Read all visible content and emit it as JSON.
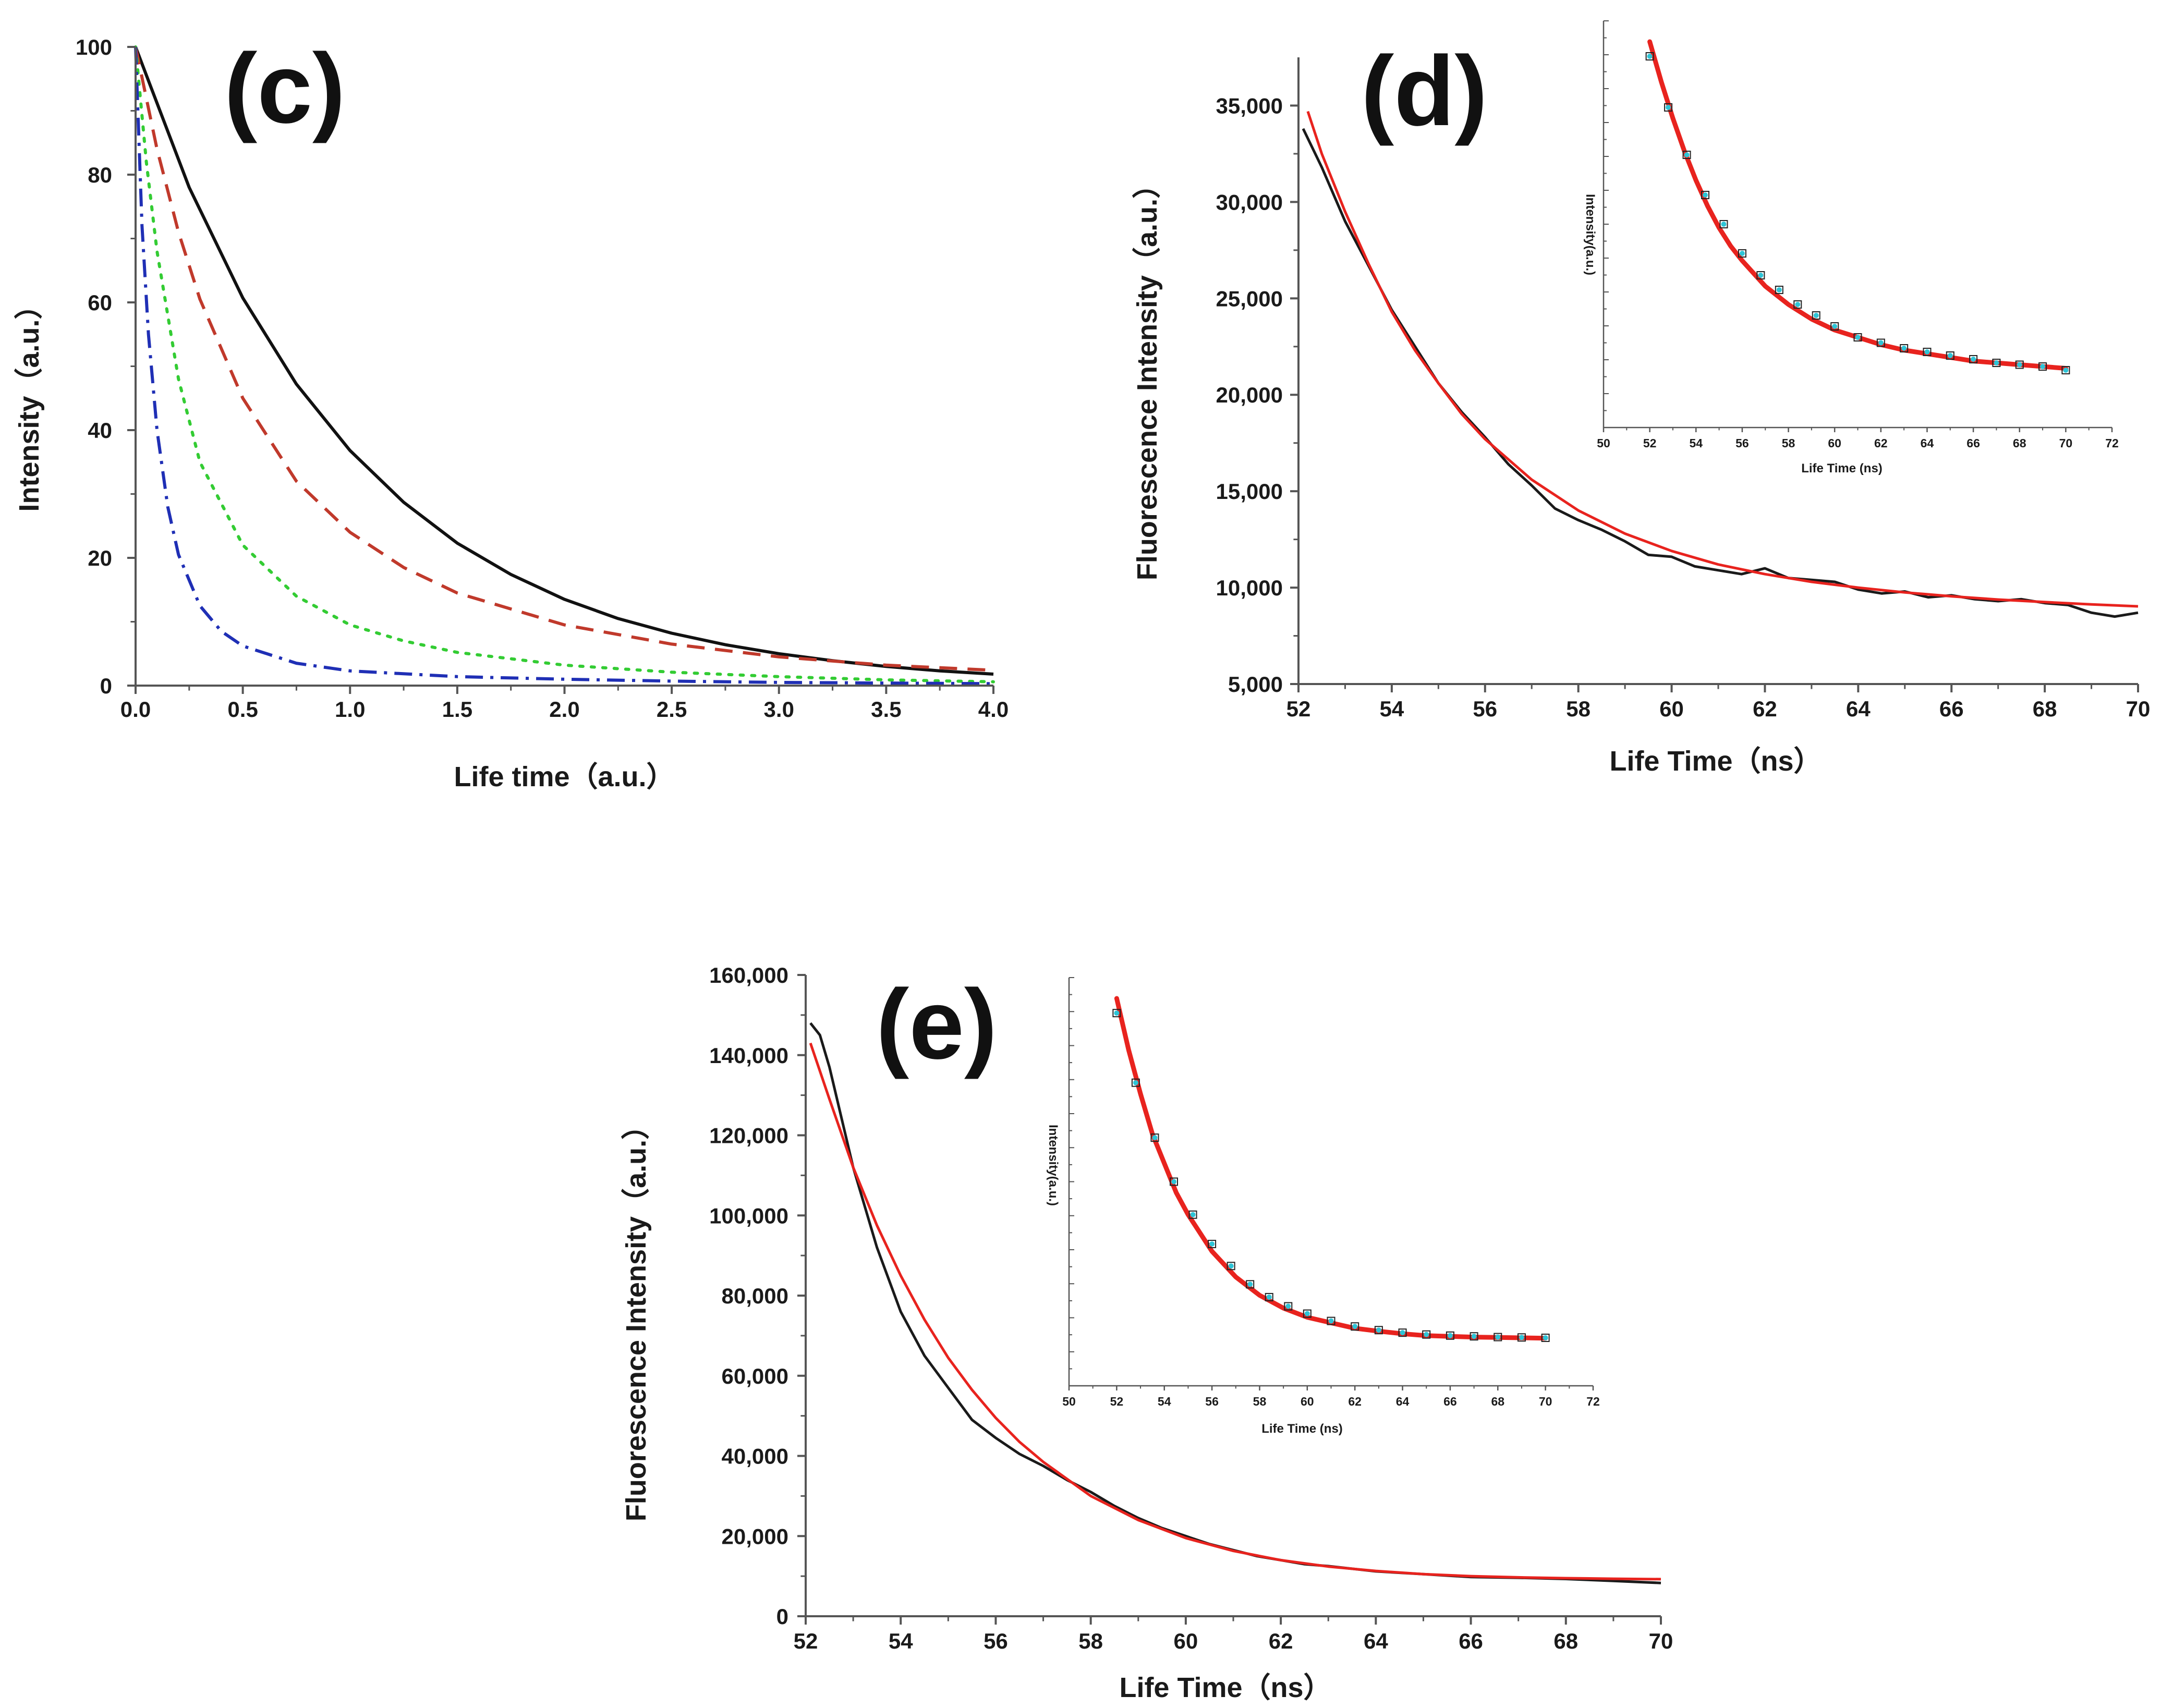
{
  "figure": {
    "panels": [
      {
        "id": "c",
        "label": "(c)",
        "xlabel": "Life time（a.u.）",
        "ylabel": "Intensity（a.u.）",
        "xticks": [
          "0.0",
          "0.5",
          "1.0",
          "1.5",
          "2.0",
          "2.5",
          "3.0",
          "3.5",
          "4.0"
        ],
        "yticks": [
          "0",
          "20",
          "40",
          "60",
          "80",
          "100"
        ]
      },
      {
        "id": "d",
        "label": "(d)",
        "xlabel": "Life Time（ns）",
        "ylabel": "Fluorescence Intensity（a.u.）",
        "xticks": [
          "52",
          "54",
          "56",
          "58",
          "60",
          "62",
          "64",
          "66",
          "68",
          "70"
        ],
        "yticks": [
          "5,000",
          "10,000",
          "15,000",
          "20,000",
          "25,000",
          "30,000",
          "35,000"
        ],
        "inset": {
          "xlabel": "Life Time (ns)",
          "ylabel": "Intensity(a.u.)",
          "xticks": [
            "50",
            "52",
            "54",
            "56",
            "58",
            "60",
            "62",
            "64",
            "66",
            "68",
            "70",
            "72"
          ]
        }
      },
      {
        "id": "e",
        "label": "(e)",
        "xlabel": "Life Time（ns）",
        "ylabel": "Fluorescence Intensity（a.u.）",
        "xticks": [
          "52",
          "54",
          "56",
          "58",
          "60",
          "62",
          "64",
          "66",
          "68",
          "70"
        ],
        "yticks": [
          "0",
          "20,000",
          "40,000",
          "60,000",
          "80,000",
          "100,000",
          "120,000",
          "140,000",
          "160,000"
        ],
        "inset": {
          "xlabel": "Life Time (ns)",
          "ylabel": "Intensity(a.u.)",
          "xticks": [
            "50",
            "52",
            "54",
            "56",
            "58",
            "60",
            "62",
            "64",
            "66",
            "68",
            "70",
            "72"
          ]
        }
      }
    ]
  },
  "chart_data": [
    {
      "panel": "c",
      "type": "line",
      "title": "(c)",
      "xlabel": "Life time（a.u.）",
      "ylabel": "Intensity（a.u.）",
      "xlim": [
        0,
        4
      ],
      "ylim": [
        0,
        100
      ],
      "series": [
        {
          "name": "solid black",
          "color": "#111111",
          "style": "solid",
          "x": [
            0,
            0.25,
            0.5,
            0.75,
            1.0,
            1.25,
            1.5,
            1.75,
            2.0,
            2.25,
            2.5,
            2.75,
            3.0,
            3.25,
            3.5,
            3.75,
            4.0
          ],
          "y": [
            100,
            78,
            60.7,
            47.2,
            36.8,
            28.7,
            22.3,
            17.4,
            13.5,
            10.5,
            8.2,
            6.4,
            5.0,
            3.9,
            3.0,
            2.3,
            1.8
          ]
        },
        {
          "name": "dashed red",
          "color": "#c0392b",
          "style": "dashed",
          "x": [
            0,
            0.1,
            0.2,
            0.3,
            0.5,
            0.75,
            1.0,
            1.25,
            1.5,
            2.0,
            2.5,
            3.0,
            3.5,
            4.0
          ],
          "y": [
            100,
            84,
            71,
            60.5,
            45,
            32,
            24,
            18.5,
            14.5,
            9.5,
            6.5,
            4.5,
            3.2,
            2.4
          ]
        },
        {
          "name": "dotted green",
          "color": "#33cc33",
          "style": "dotted",
          "x": [
            0,
            0.05,
            0.1,
            0.2,
            0.3,
            0.5,
            0.75,
            1.0,
            1.25,
            1.5,
            2.0,
            2.5,
            3.0,
            3.5,
            4.0
          ],
          "y": [
            100,
            82,
            68,
            48,
            35,
            22,
            14,
            9.5,
            7,
            5.2,
            3.2,
            2.1,
            1.4,
            0.9,
            0.6
          ]
        },
        {
          "name": "dash-dot blue",
          "color": "#1f2fb5",
          "style": "dashdot",
          "x": [
            0,
            0.03,
            0.06,
            0.1,
            0.15,
            0.2,
            0.3,
            0.4,
            0.5,
            0.75,
            1.0,
            1.5,
            2.0,
            2.5,
            3.0,
            3.5,
            4.0
          ],
          "y": [
            100,
            72,
            55,
            40,
            28,
            20.5,
            12.5,
            8.5,
            6.2,
            3.5,
            2.3,
            1.4,
            1.0,
            0.7,
            0.5,
            0.4,
            0.3
          ]
        }
      ]
    },
    {
      "panel": "d",
      "type": "line",
      "title": "(d)",
      "xlabel": "Life Time（ns）",
      "ylabel": "Fluorescence Intensity（a.u.）",
      "xlim": [
        52,
        70
      ],
      "ylim": [
        5000,
        37500
      ],
      "series": [
        {
          "name": "measured decay",
          "color": "#1a1a1a",
          "style": "solid",
          "x": [
            52.1,
            52.5,
            53,
            53.5,
            54,
            54.5,
            55,
            55.5,
            56,
            56.5,
            57,
            57.5,
            58,
            58.5,
            59,
            59.5,
            60,
            60.5,
            61,
            61.5,
            62,
            62.5,
            63,
            63.5,
            64,
            64.5,
            65,
            65.5,
            66,
            66.5,
            67,
            67.5,
            68,
            68.5,
            69,
            69.5,
            70
          ],
          "y": [
            33800,
            31800,
            29000,
            26700,
            24400,
            22500,
            20600,
            19100,
            17800,
            16400,
            15300,
            14100,
            13500,
            13000,
            12400,
            11700,
            11600,
            11100,
            10900,
            10700,
            11000,
            10500,
            10400,
            10300,
            9900,
            9700,
            9800,
            9500,
            9600,
            9400,
            9300,
            9400,
            9200,
            9100,
            8700,
            8500,
            8700
          ]
        },
        {
          "name": "fitted curve",
          "color": "#e8231e",
          "style": "solid",
          "x": [
            52.2,
            52.5,
            53,
            53.5,
            54,
            54.5,
            55,
            55.5,
            56,
            57,
            58,
            59,
            60,
            61,
            62,
            63,
            64,
            65,
            66,
            67,
            68,
            69,
            70
          ],
          "y": [
            34700,
            32500,
            29500,
            26800,
            24300,
            22300,
            20600,
            19000,
            17700,
            15600,
            14000,
            12800,
            11900,
            11200,
            10700,
            10300,
            10000,
            9750,
            9550,
            9380,
            9250,
            9130,
            9030
          ]
        }
      ],
      "inset": {
        "type": "line",
        "xlabel": "Life Time (ns)",
        "ylabel": "Intensity(a.u.)",
        "xlim": [
          50,
          72
        ],
        "ylim": [
          0,
          1
        ],
        "series": [
          {
            "name": "fitted curve",
            "color": "#e8231e",
            "x": [
              52,
              52.5,
              53,
              53.5,
              54,
              54.5,
              55,
              55.5,
              56,
              57,
              58,
              59,
              60,
              61,
              62,
              63,
              64,
              65,
              66,
              67,
              68,
              69,
              70
            ],
            "y": [
              1.0,
              0.89,
              0.79,
              0.7,
              0.62,
              0.55,
              0.49,
              0.44,
              0.4,
              0.33,
              0.28,
              0.24,
              0.21,
              0.19,
              0.17,
              0.155,
              0.145,
              0.135,
              0.125,
              0.12,
              0.115,
              0.11,
              0.105
            ]
          },
          {
            "name": "data points",
            "color": "#2ec4d6",
            "x": [
              52,
              52.8,
              53.6,
              54.4,
              55.2,
              56,
              56.8,
              57.6,
              58.4,
              59.2,
              60,
              61,
              62,
              63,
              64,
              65,
              66,
              67,
              68,
              69,
              70
            ],
            "y": [
              0.96,
              0.82,
              0.69,
              0.58,
              0.5,
              0.42,
              0.36,
              0.32,
              0.28,
              0.25,
              0.22,
              0.19,
              0.175,
              0.16,
              0.15,
              0.14,
              0.13,
              0.12,
              0.115,
              0.11,
              0.1
            ]
          }
        ]
      }
    },
    {
      "panel": "e",
      "type": "line",
      "title": "(e)",
      "xlabel": "Life Time（ns）",
      "ylabel": "Fluorescence Intensity（a.u.）",
      "xlim": [
        52,
        70
      ],
      "ylim": [
        0,
        160000
      ],
      "series": [
        {
          "name": "measured decay",
          "color": "#1a1a1a",
          "style": "solid",
          "x": [
            52.1,
            52.3,
            52.5,
            53,
            53.5,
            54,
            54.5,
            55,
            55.5,
            56,
            56.5,
            57,
            57.5,
            58,
            58.5,
            59,
            59.5,
            60,
            60.5,
            61,
            61.5,
            62,
            62.5,
            63,
            64,
            65,
            66,
            67,
            68,
            69,
            70
          ],
          "y": [
            148000,
            145000,
            137000,
            112000,
            92000,
            76000,
            65000,
            57000,
            49000,
            44500,
            40500,
            37500,
            34000,
            31000,
            27500,
            24500,
            22000,
            20000,
            18000,
            16500,
            15000,
            14000,
            13000,
            12500,
            11200,
            10500,
            9800,
            9600,
            9300,
            8800,
            8300
          ]
        },
        {
          "name": "fitted curve",
          "color": "#e8231e",
          "style": "solid",
          "x": [
            52.1,
            52.5,
            53,
            53.5,
            54,
            54.5,
            55,
            55.5,
            56,
            56.5,
            57,
            58,
            59,
            60,
            61,
            62,
            63,
            64,
            65,
            66,
            67,
            68,
            69,
            70
          ],
          "y": [
            143000,
            129000,
            112000,
            97500,
            85000,
            74000,
            64500,
            56500,
            49500,
            43500,
            38500,
            30000,
            24000,
            19500,
            16300,
            14000,
            12400,
            11300,
            10500,
            10000,
            9700,
            9500,
            9350,
            9250
          ]
        }
      ],
      "inset": {
        "type": "line",
        "xlabel": "Life Time (ns)",
        "ylabel": "Intensity(a.u.)",
        "xlim": [
          50,
          72
        ],
        "ylim": [
          0,
          1
        ],
        "series": [
          {
            "name": "fitted curve",
            "color": "#e8231e",
            "x": [
              52,
              52.5,
              53,
              53.5,
              54,
              54.5,
              55,
              55.5,
              56,
              57,
              58,
              59,
              60,
              61,
              62,
              63,
              64,
              65,
              66,
              67,
              68,
              69,
              70
            ],
            "y": [
              1.0,
              0.86,
              0.74,
              0.63,
              0.55,
              0.47,
              0.41,
              0.36,
              0.31,
              0.24,
              0.19,
              0.155,
              0.13,
              0.115,
              0.1,
              0.092,
              0.085,
              0.08,
              0.078,
              0.076,
              0.075,
              0.074,
              0.073
            ]
          },
          {
            "name": "data points",
            "color": "#2ec4d6",
            "x": [
              52,
              52.8,
              53.6,
              54.4,
              55.2,
              56,
              56.8,
              57.6,
              58.4,
              59.2,
              60,
              61,
              62,
              63,
              64,
              65,
              66,
              67,
              68,
              69,
              70
            ],
            "y": [
              0.96,
              0.77,
              0.62,
              0.5,
              0.41,
              0.33,
              0.27,
              0.22,
              0.185,
              0.16,
              0.14,
              0.12,
              0.105,
              0.095,
              0.088,
              0.083,
              0.08,
              0.078,
              0.076,
              0.075,
              0.074
            ]
          }
        ]
      }
    }
  ]
}
